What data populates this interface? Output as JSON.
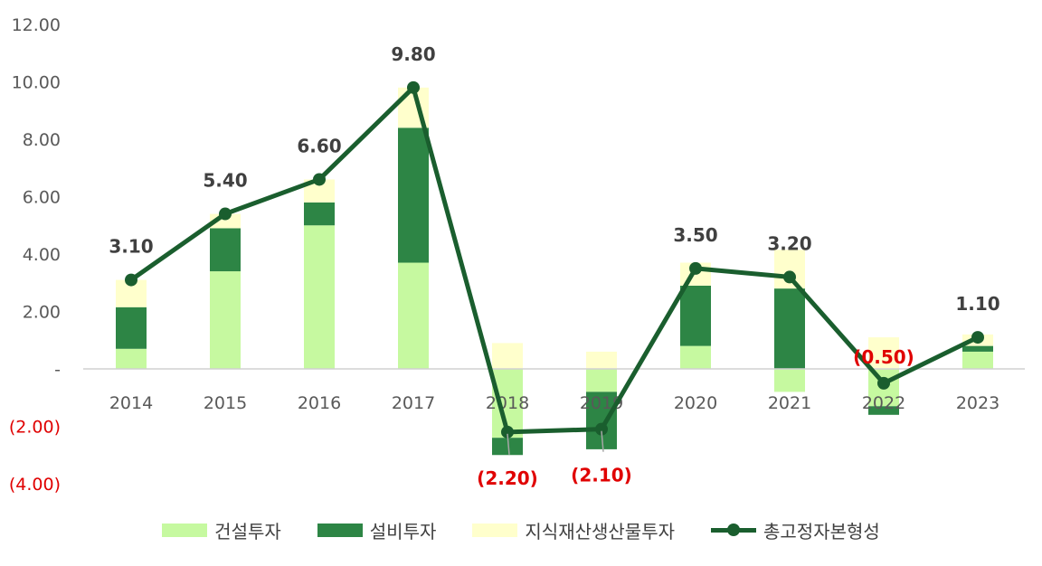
{
  "chart_data": {
    "type": "bar+line",
    "categories": [
      "2014",
      "2015",
      "2016",
      "2017",
      "2018",
      "2019",
      "2020",
      "2021",
      "2022",
      "2023"
    ],
    "ylim": [
      -4,
      12
    ],
    "y_ticks": [
      {
        "value": 12,
        "label": "12.00"
      },
      {
        "value": 10,
        "label": "10.00"
      },
      {
        "value": 8,
        "label": "8.00"
      },
      {
        "value": 6,
        "label": "6.00"
      },
      {
        "value": 4,
        "label": "4.00"
      },
      {
        "value": 2,
        "label": "2.00"
      },
      {
        "value": 0,
        "label": "-"
      },
      {
        "value": -2,
        "label": "(2.00)"
      },
      {
        "value": -4,
        "label": "(4.00)"
      }
    ],
    "grid": false,
    "legend_position": "bottom",
    "series": [
      {
        "name": "건설투자",
        "type": "stacked-bar",
        "color": "#c6f9a0",
        "values": [
          0.7,
          3.4,
          5.0,
          3.7,
          -2.4,
          -0.8,
          0.8,
          -0.8,
          -1.3,
          0.6
        ]
      },
      {
        "name": "설비투자",
        "type": "stacked-bar",
        "color": "#2d8545",
        "values": [
          1.45,
          1.5,
          0.8,
          4.7,
          -0.6,
          -2.0,
          2.1,
          2.8,
          -0.3,
          0.2
        ]
      },
      {
        "name": "지식재산생산물투자",
        "type": "stacked-bar",
        "color": "#ffffcc",
        "values": [
          0.95,
          0.5,
          0.8,
          1.4,
          0.9,
          0.6,
          0.8,
          1.35,
          1.1,
          0.4
        ]
      },
      {
        "name": "총고정자본형성",
        "type": "line",
        "color": "#1a5e2e",
        "values": [
          3.1,
          5.4,
          6.6,
          9.8,
          -2.2,
          -2.1,
          3.5,
          3.2,
          -0.5,
          1.1
        ],
        "labels": [
          "3.10",
          "5.40",
          "6.60",
          "9.80",
          "(2.20)",
          "(2.10)",
          "3.50",
          "3.20",
          "(0.50)",
          "1.10"
        ]
      }
    ],
    "negative_color": "#e00000",
    "label_color": "#404040"
  }
}
